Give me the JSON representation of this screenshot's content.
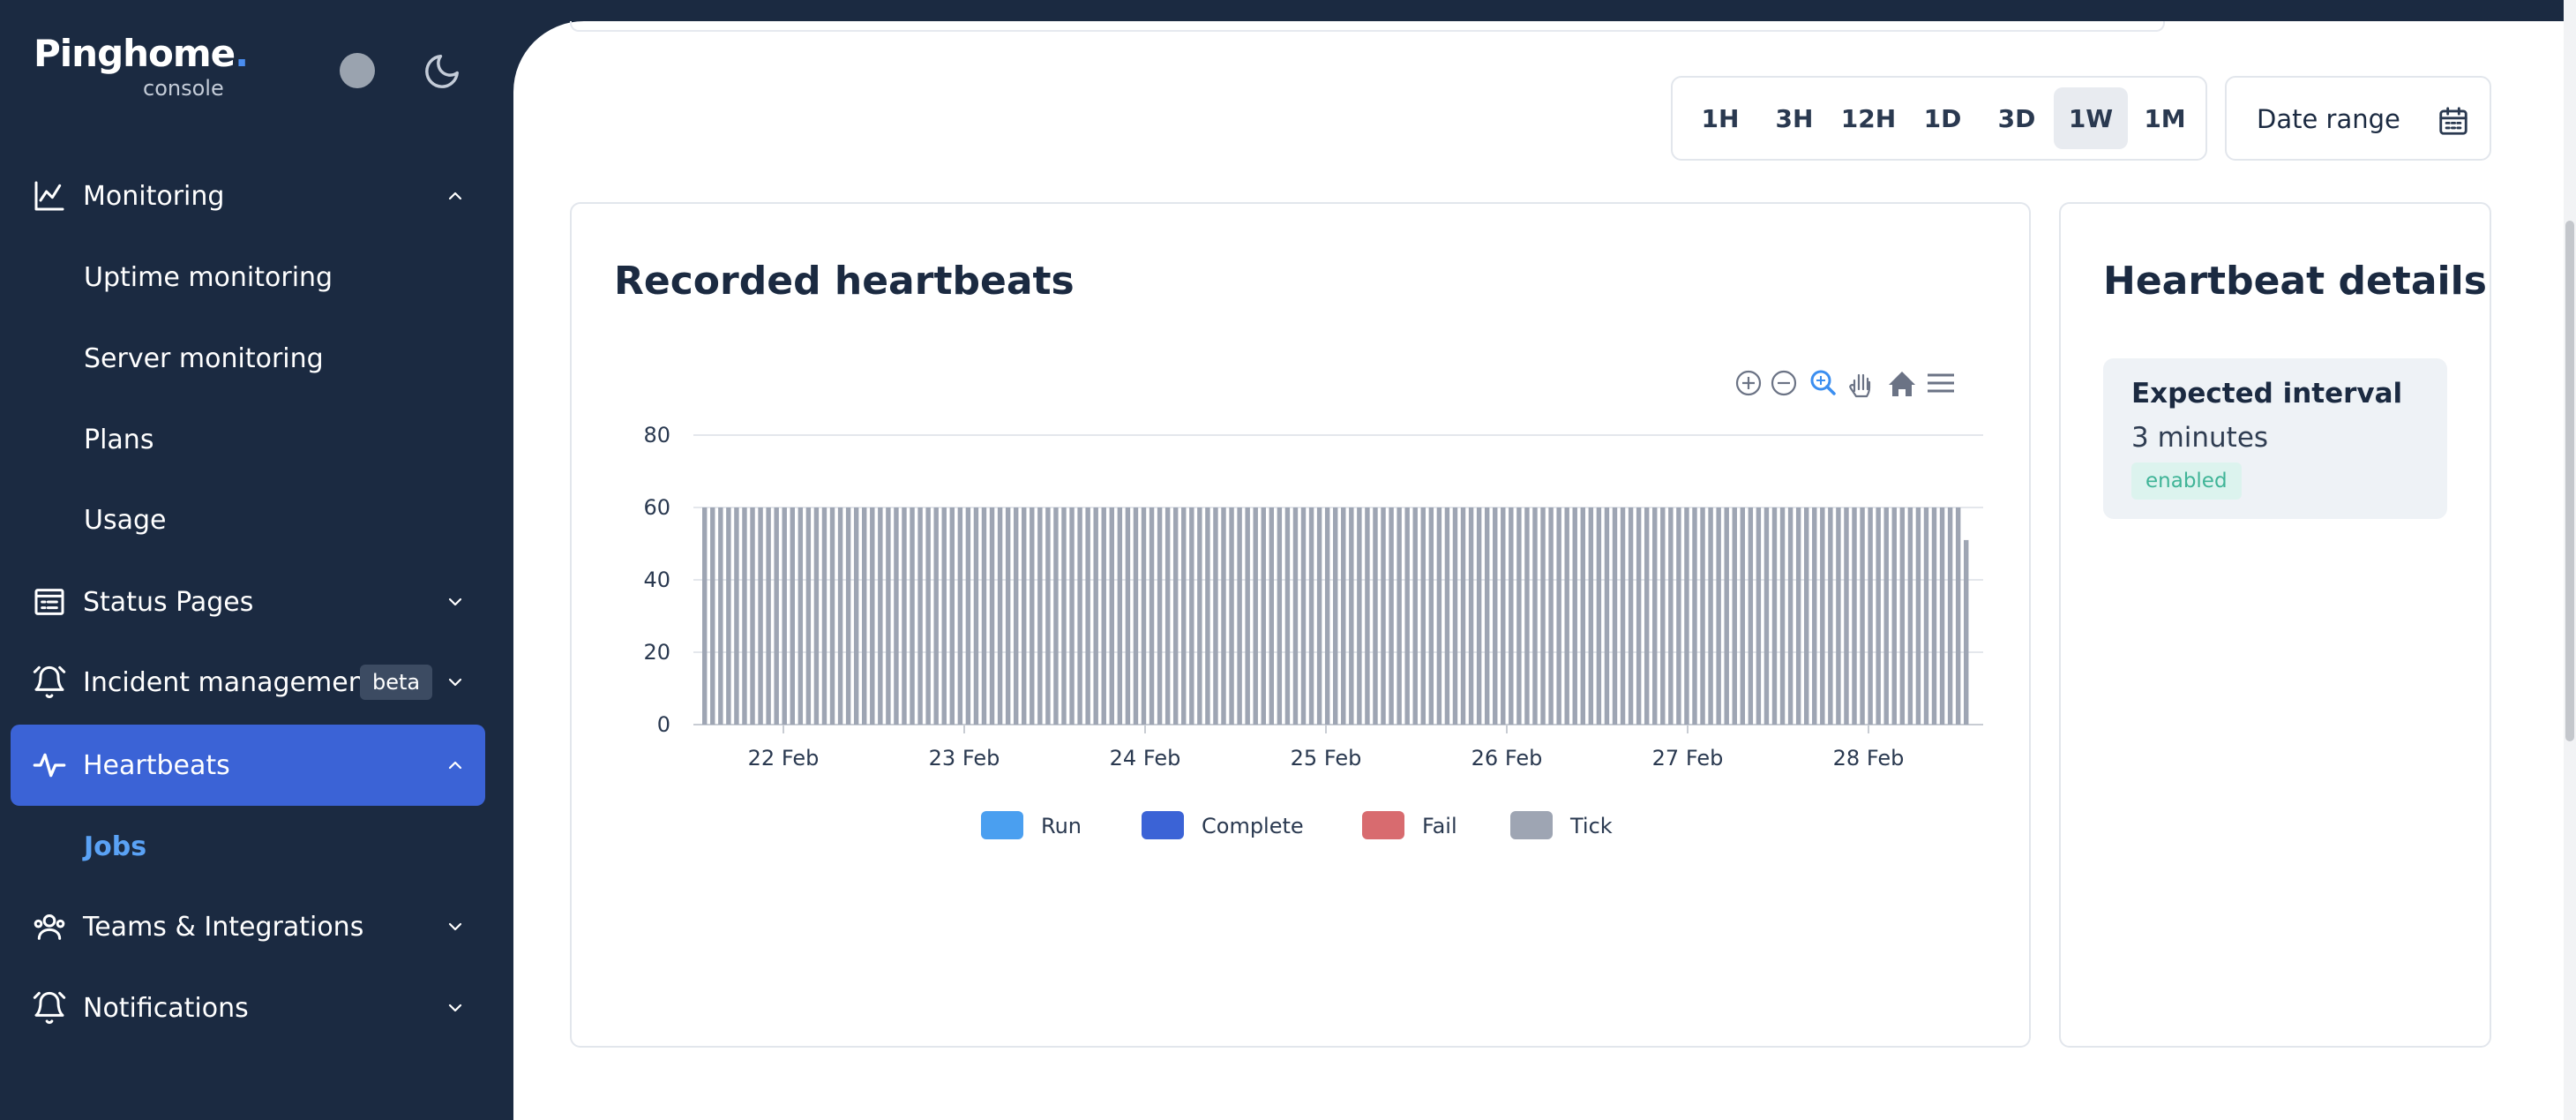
{
  "app": {
    "logo_text": "Pinghome",
    "logo_dot": ".",
    "logo_sub": "console"
  },
  "sidebar": {
    "items": [
      {
        "label": "Monitoring",
        "icon": "chart-line-icon",
        "expanded": true
      },
      {
        "label": "Status Pages",
        "icon": "status-page-icon",
        "expanded": false
      },
      {
        "label": "Incident management",
        "icon": "alarm-bell-icon",
        "badge": "beta",
        "expanded": false
      },
      {
        "label": "Heartbeats",
        "icon": "pulse-icon",
        "expanded": true,
        "active": true
      },
      {
        "label": "Teams & Integrations",
        "icon": "team-icon",
        "expanded": false
      },
      {
        "label": "Notifications",
        "icon": "alarm-bell-icon",
        "expanded": false
      }
    ],
    "monitoring_sub": [
      "Uptime monitoring",
      "Server monitoring",
      "Plans",
      "Usage"
    ],
    "heartbeats_sub": [
      "Jobs"
    ]
  },
  "toolbar": {
    "time_ranges": [
      "1H",
      "3H",
      "12H",
      "1D",
      "3D",
      "1W",
      "1M"
    ],
    "selected_range": "1W",
    "date_range_label": "Date range"
  },
  "chart_card": {
    "title": "Recorded heartbeats"
  },
  "details_card": {
    "title": "Heartbeat details",
    "interval_label": "Expected interval",
    "interval_value": "3 minutes",
    "status_badge": "enabled"
  },
  "colors": {
    "sidebar_bg": "#1b2a41",
    "active_nav": "#3b63d6",
    "run": "#4a9ff0",
    "complete": "#3b63d6",
    "fail": "#d86b6f",
    "tick": "#9ea5b3"
  },
  "chart_data": {
    "type": "bar",
    "title": "",
    "ylim": [
      0,
      80
    ],
    "y_ticks": [
      0,
      20,
      40,
      60,
      80
    ],
    "x_tick_labels": [
      "22 Feb",
      "23 Feb",
      "24 Feb",
      "25 Feb",
      "26 Feb",
      "27 Feb",
      "28 Feb"
    ],
    "legend": [
      "Run",
      "Complete",
      "Fail",
      "Tick"
    ],
    "legend_position": "bottom",
    "series": [
      {
        "name": "Tick",
        "bar_count": 159,
        "value": 60,
        "last_value": 51
      }
    ],
    "toolbar_icons": [
      "zoom-in-icon",
      "zoom-out-icon",
      "zoom-select-icon",
      "pan-hand-icon",
      "home-icon",
      "menu-icon"
    ]
  }
}
